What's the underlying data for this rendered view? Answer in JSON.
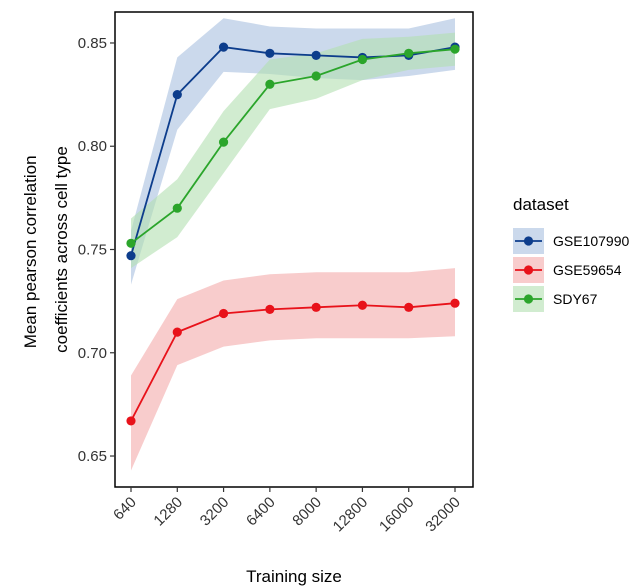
{
  "chart_data": {
    "type": "line",
    "title": "",
    "xlabel": "Training size",
    "ylabel": "Mean pearson correlation coefficients across cell type",
    "ylabel_lines": [
      "Mean pearson correlation",
      "coefficients across cell type"
    ],
    "categories": [
      "640",
      "1280",
      "3200",
      "6400",
      "8000",
      "12800",
      "16000",
      "32000"
    ],
    "ylim": [
      0.635,
      0.865
    ],
    "yticks": [
      0.65,
      0.7,
      0.75,
      0.8,
      0.85
    ],
    "ytick_labels": [
      "0.65",
      "0.70",
      "0.75",
      "0.80",
      "0.85"
    ],
    "grid": false,
    "legend": {
      "title": "dataset",
      "position": "right"
    },
    "series": [
      {
        "name": "GSE107990",
        "color": "#0d3d8c",
        "band_color": "#a9bfe0",
        "values": [
          0.747,
          0.825,
          0.848,
          0.845,
          0.844,
          0.843,
          0.844,
          0.848
        ],
        "lower": [
          0.733,
          0.808,
          0.836,
          0.835,
          0.833,
          0.832,
          0.834,
          0.837
        ],
        "upper": [
          0.759,
          0.843,
          0.862,
          0.858,
          0.857,
          0.857,
          0.857,
          0.862
        ]
      },
      {
        "name": "GSE59654",
        "color": "#e8121a",
        "band_color": "#f4aaaa",
        "values": [
          0.667,
          0.71,
          0.719,
          0.721,
          0.722,
          0.723,
          0.722,
          0.724
        ],
        "lower": [
          0.643,
          0.694,
          0.703,
          0.706,
          0.707,
          0.707,
          0.707,
          0.708
        ],
        "upper": [
          0.689,
          0.726,
          0.735,
          0.738,
          0.739,
          0.739,
          0.739,
          0.741
        ]
      },
      {
        "name": "SDY67",
        "color": "#2ba52b",
        "band_color": "#b3dfb0",
        "values": [
          0.753,
          0.77,
          0.802,
          0.83,
          0.834,
          0.842,
          0.845,
          0.847
        ],
        "lower": [
          0.741,
          0.756,
          0.787,
          0.818,
          0.823,
          0.832,
          0.837,
          0.839
        ],
        "upper": [
          0.765,
          0.784,
          0.817,
          0.842,
          0.845,
          0.852,
          0.853,
          0.855
        ]
      }
    ]
  }
}
